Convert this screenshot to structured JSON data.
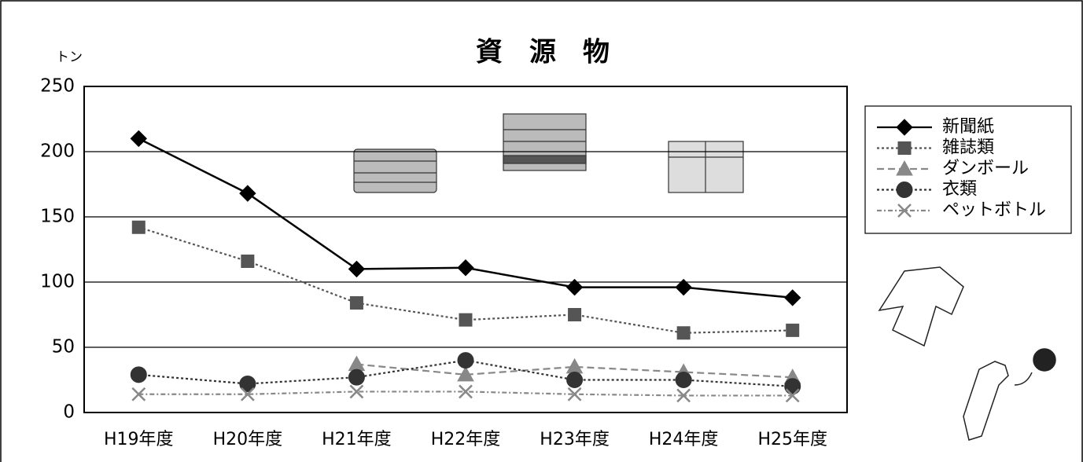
{
  "chart_data": {
    "type": "line",
    "title": "資　源　物",
    "y_unit": "トン",
    "categories": [
      "H19年度",
      "H20年度",
      "H21年度",
      "H22年度",
      "H23年度",
      "H24年度",
      "H25年度"
    ],
    "series": [
      {
        "name": "新聞紙",
        "color": "#000000",
        "marker": "diamond",
        "dash": "solid",
        "values": [
          210,
          168,
          110,
          111,
          96,
          96,
          88
        ]
      },
      {
        "name": "雑誌類",
        "color": "#555555",
        "marker": "square",
        "dash": "dotted",
        "values": [
          142,
          116,
          84,
          71,
          75,
          61,
          63
        ]
      },
      {
        "name": "ダンボール",
        "color": "#888888",
        "marker": "triangle",
        "dash": "dashed",
        "values": [
          null,
          null,
          37,
          29,
          35,
          31,
          27
        ]
      },
      {
        "name": "衣類",
        "color": "#333333",
        "marker": "circle",
        "dash": "dotted",
        "values": [
          29,
          22,
          27,
          40,
          25,
          25,
          20
        ]
      },
      {
        "name": "ペットボトル",
        "color": "#888888",
        "marker": "x",
        "dash": "dashdot",
        "values": [
          14,
          14,
          16,
          16,
          14,
          13,
          13
        ]
      }
    ],
    "ylim": [
      0,
      250
    ],
    "yticks": [
      0,
      50,
      100,
      150,
      200,
      250
    ],
    "grid": true,
    "legend": "right"
  }
}
